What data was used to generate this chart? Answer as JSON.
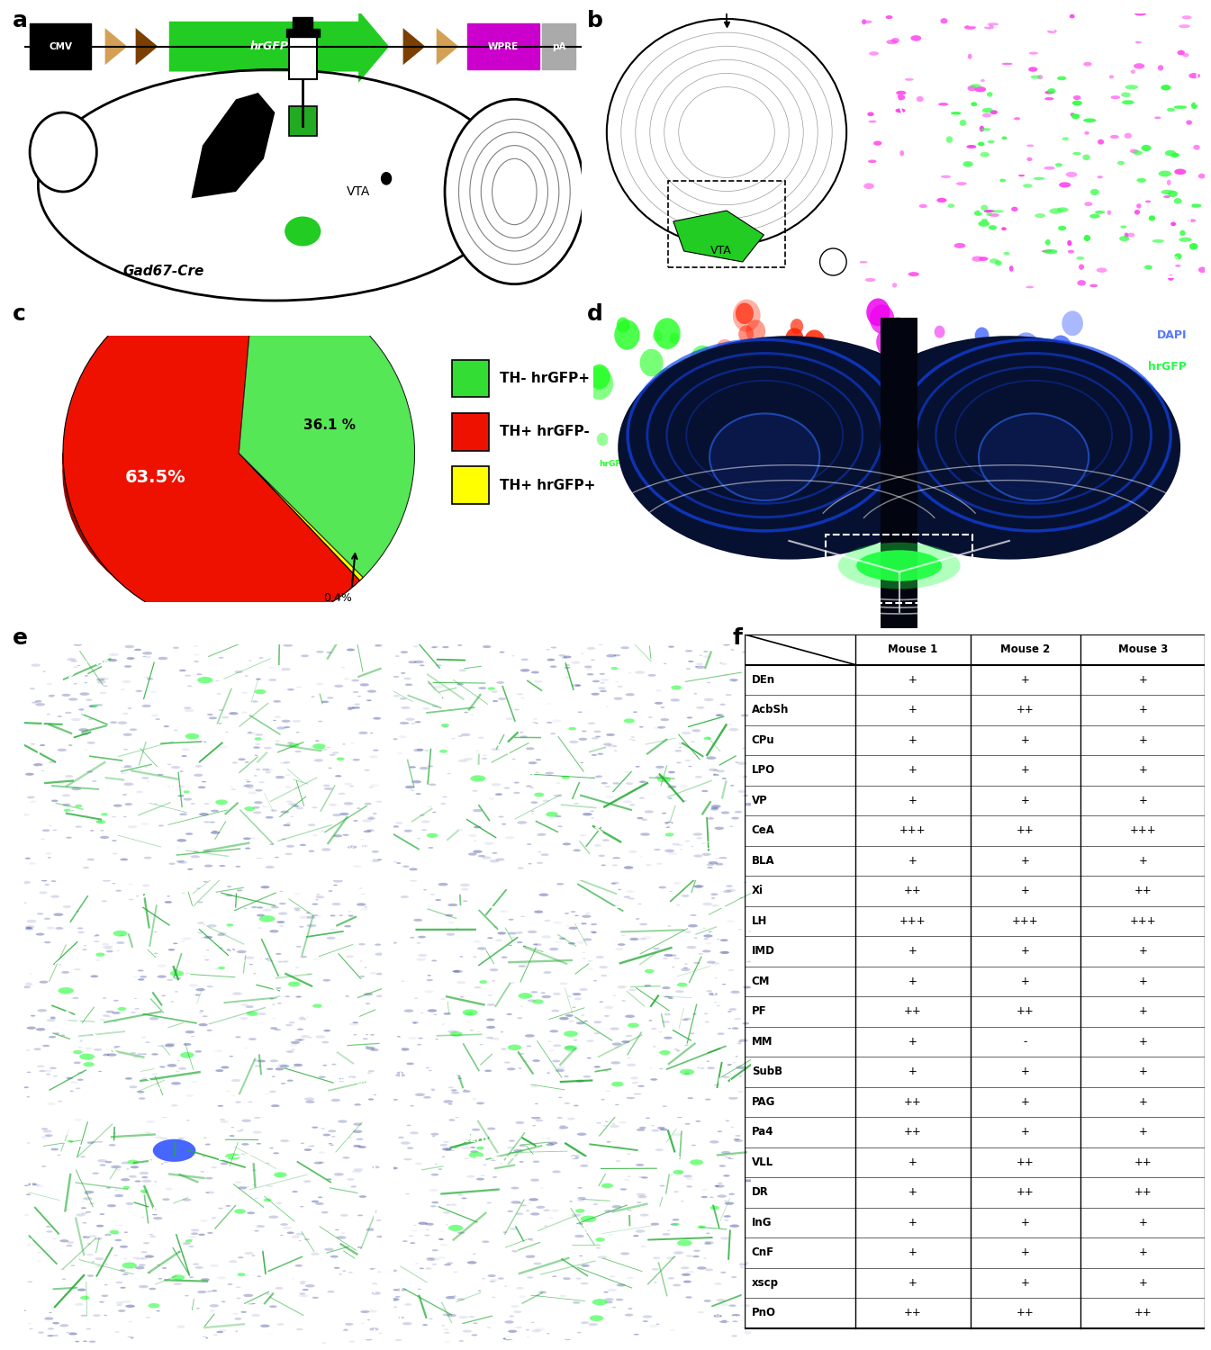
{
  "pie_values": [
    36.1,
    63.5,
    0.4
  ],
  "pie_colors": [
    "#33dd33",
    "#ee1100",
    "#ffff00"
  ],
  "pie_labels": [
    "36.1 %",
    "63.5%",
    "0.4%"
  ],
  "legend_labels": [
    "TH- hrGFP+",
    "TH+ hrGFP-",
    "TH+ hrGFP+"
  ],
  "legend_colors": [
    "#33dd33",
    "#ee1100",
    "#ffff00"
  ],
  "table_headers": [
    "",
    "Mouse 1",
    "Mouse 2",
    "Mouse 3"
  ],
  "table_rows": [
    [
      "DEn",
      "+",
      "+",
      "+"
    ],
    [
      "AcbSh",
      "+",
      "++",
      "+"
    ],
    [
      "CPu",
      "+",
      "+",
      "+"
    ],
    [
      "LPO",
      "+",
      "+",
      "+"
    ],
    [
      "VP",
      "+",
      "+",
      "+"
    ],
    [
      "CeA",
      "+++",
      "++",
      "+++"
    ],
    [
      "BLA",
      "+",
      "+",
      "+"
    ],
    [
      "Xi",
      "++",
      "+",
      "++"
    ],
    [
      "LH",
      "+++",
      "+++",
      "+++"
    ],
    [
      "IMD",
      "+",
      "+",
      "+"
    ],
    [
      "CM",
      "+",
      "+",
      "+"
    ],
    [
      "PF",
      "++",
      "++",
      "+"
    ],
    [
      "MM",
      "+",
      "-",
      "+"
    ],
    [
      "SubB",
      "+",
      "+",
      "+"
    ],
    [
      "PAG",
      "++",
      "+",
      "+"
    ],
    [
      "Pa4",
      "++",
      "+",
      "+"
    ],
    [
      "VLL",
      "+",
      "++",
      "++"
    ],
    [
      "DR",
      "+",
      "++",
      "++"
    ],
    [
      "InG",
      "+",
      "+",
      "+"
    ],
    [
      "CnF",
      "+",
      "+",
      "+"
    ],
    [
      "xscp",
      "+",
      "+",
      "+"
    ],
    [
      "PnO",
      "++",
      "++",
      "++"
    ]
  ],
  "bg_color": "#ffffff",
  "figure_size": [
    13.45,
    15.0
  ]
}
